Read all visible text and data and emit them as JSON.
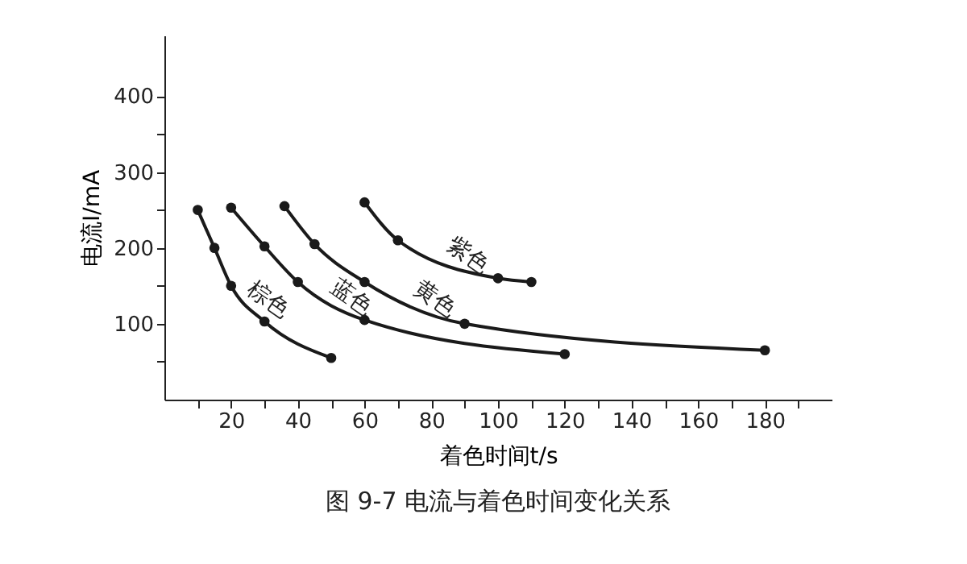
{
  "chart_data": {
    "type": "line",
    "title": "图 9-7  电流与着色时间变化关系",
    "xlabel": "着色时间t/s",
    "ylabel": "电流I/mA",
    "series": [
      {
        "name": "棕色",
        "color": "#1a1a1a",
        "x": [
          10,
          15,
          20,
          30,
          50
        ],
        "values": [
          250,
          200,
          150,
          103,
          55
        ]
      },
      {
        "name": "蓝色",
        "color": "#1a1a1a",
        "x": [
          20,
          30,
          40,
          60,
          120
        ],
        "values": [
          253,
          202,
          155,
          105,
          60
        ]
      },
      {
        "name": "黄色",
        "color": "#1a1a1a",
        "x": [
          36,
          45,
          60,
          90,
          180
        ],
        "values": [
          255,
          205,
          155,
          100,
          65
        ]
      },
      {
        "name": "紫色",
        "color": "#1a1a1a",
        "x": [
          60,
          70,
          100,
          110
        ],
        "values": [
          260,
          210,
          160,
          155
        ]
      }
    ],
    "xlim": [
      0,
      200
    ],
    "xticks": [
      {
        "value": 10,
        "label": null
      },
      20,
      {
        "value": 30,
        "label": null
      },
      40,
      {
        "value": 50,
        "label": null
      },
      60,
      {
        "value": 70,
        "label": null
      },
      80,
      {
        "value": 90,
        "label": null
      },
      100,
      {
        "value": 110,
        "label": null
      },
      120,
      {
        "value": 130,
        "label": null
      },
      140,
      {
        "value": 150,
        "label": null
      },
      160,
      {
        "value": 170,
        "label": null
      },
      180,
      {
        "value": 190,
        "label": null
      }
    ],
    "ylim": [
      0,
      480
    ],
    "yticks": [
      {
        "value": 50,
        "label": null
      },
      100,
      {
        "value": 150,
        "label": null
      },
      200,
      {
        "value": 250,
        "label": null
      },
      300,
      {
        "value": 350,
        "label": null
      },
      400
    ],
    "grid": false,
    "legend": false,
    "marker": "circle",
    "line_style": "solid"
  }
}
